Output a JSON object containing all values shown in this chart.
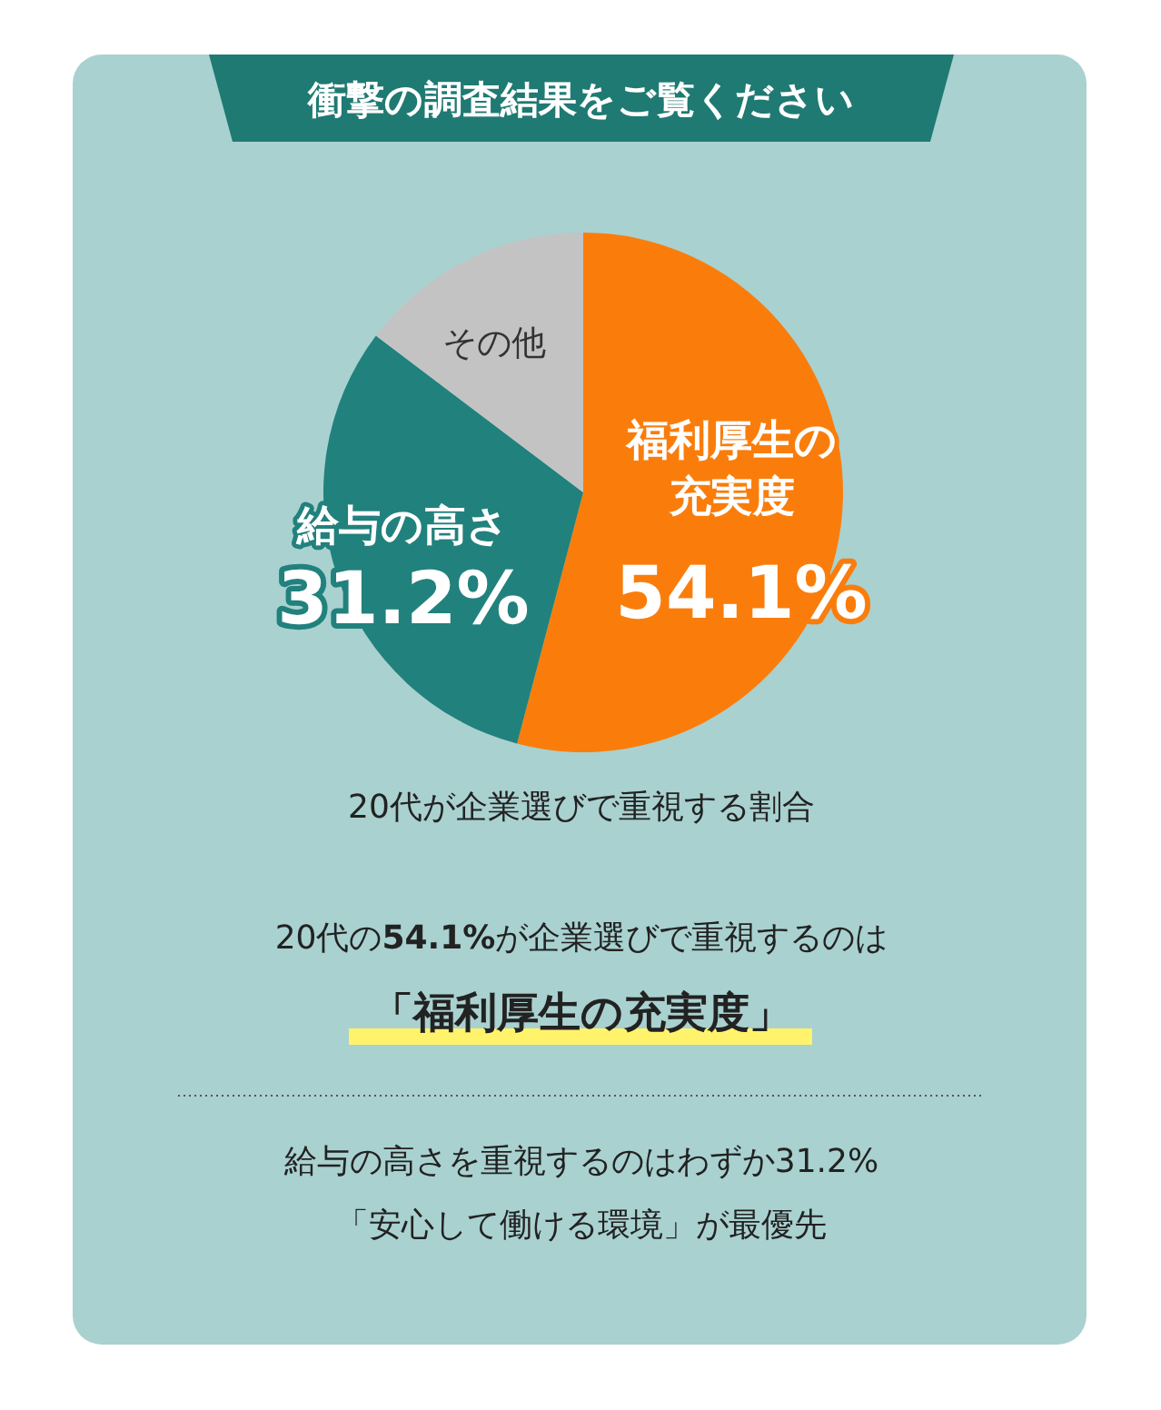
{
  "chart_data": {
    "type": "pie",
    "title": "衝撃の調査結果をご覧ください",
    "categories": [
      "福利厚生の充実度",
      "給与の高さ",
      "その他"
    ],
    "values": [
      54.1,
      31.2,
      14.7
    ],
    "colors": [
      "#fa7d0c",
      "#21817d",
      "#c3c3c3"
    ],
    "value_labels": [
      "54.1%",
      "31.2%",
      null
    ],
    "annotations": [
      "20代が企業選びで重視する割合",
      "20代の54.1%が企業選びで重視するのは",
      "「福利厚生の充実度」",
      "給与の高さを重視するのはわずか31.2%",
      "「安心して働ける環境」が最優先"
    ]
  }
}
